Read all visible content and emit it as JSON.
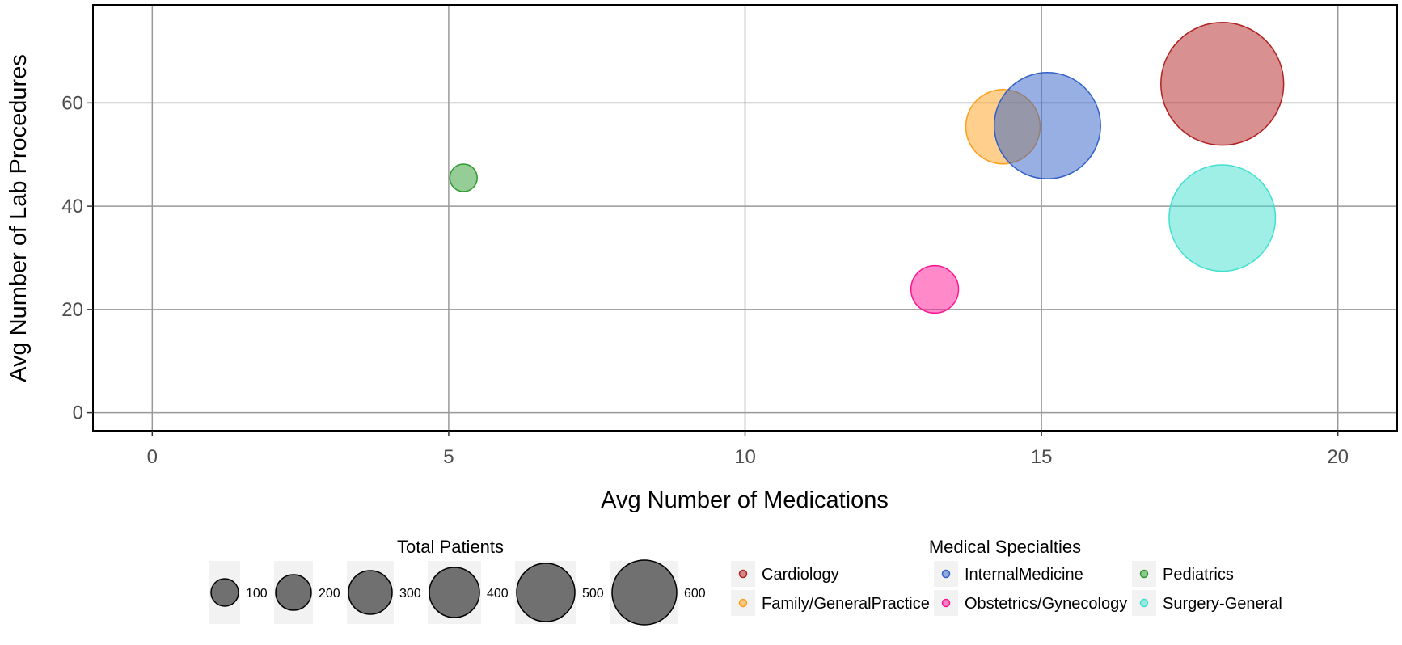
{
  "chart_data": {
    "type": "scatter",
    "subtype": "bubble",
    "xlabel": "Avg Number of Medications",
    "ylabel": "Avg Number of Lab Procedures",
    "xlim": [
      -1,
      21
    ],
    "ylim": [
      -3.5,
      79
    ],
    "x_ticks": [
      0,
      5,
      10,
      15,
      20
    ],
    "y_ticks": [
      0,
      20,
      40,
      60
    ],
    "grid": true,
    "size_legend": {
      "title": "Total Patients",
      "values": [
        100,
        200,
        300,
        400,
        500,
        600
      ]
    },
    "color_legend": {
      "title": "Medical Specialties",
      "placement": "bottom",
      "entries": [
        "Cardiology",
        "Family/GeneralPractice",
        "InternalMedicine",
        "Obstetrics/Gynecology",
        "Pediatrics",
        "Surgery-General"
      ]
    },
    "series": [
      {
        "name": "Cardiology",
        "color": "#b22222",
        "x": 18.05,
        "y": 63.7,
        "total_patients": 600
      },
      {
        "name": "Family/GeneralPractice",
        "color": "#ff9f1c",
        "x": 14.35,
        "y": 55.4,
        "total_patients": 220
      },
      {
        "name": "InternalMedicine",
        "color": "#3060c8",
        "x": 15.1,
        "y": 55.6,
        "total_patients": 450
      },
      {
        "name": "Obstetrics/Gynecology",
        "color": "#ff1493",
        "x": 13.2,
        "y": 23.9,
        "total_patients": 90
      },
      {
        "name": "Pediatrics",
        "color": "#2e9a2e",
        "x": 5.25,
        "y": 45.5,
        "total_patients": 30
      },
      {
        "name": "Surgery-General",
        "color": "#40e0d0",
        "x": 18.05,
        "y": 37.7,
        "total_patients": 450
      }
    ]
  }
}
